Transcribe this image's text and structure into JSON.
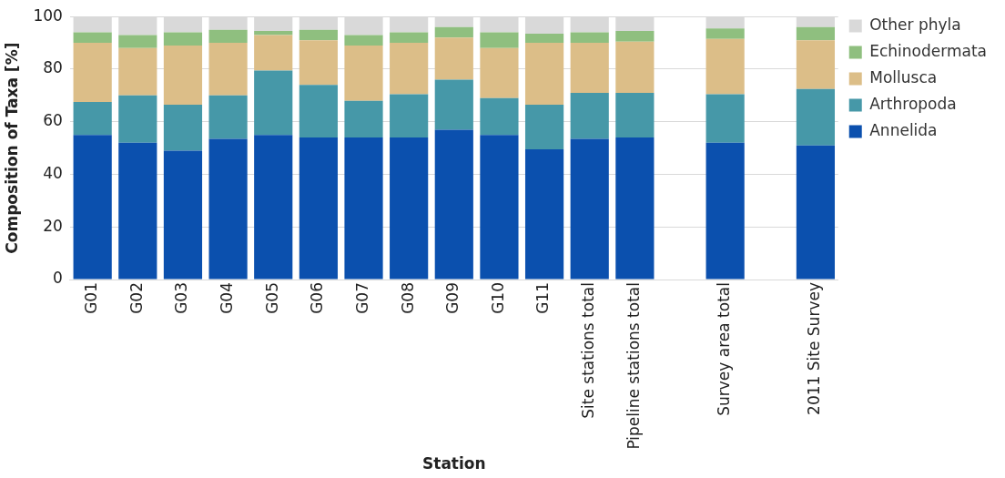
{
  "chart_data": {
    "type": "bar",
    "stacked": true,
    "xlabel": "Station",
    "ylabel": "Composition of Taxa [%]",
    "categories": [
      "G01",
      "G02",
      "G03",
      "G04",
      "G05",
      "G06",
      "G07",
      "G08",
      "G09",
      "G10",
      "G11",
      "Site stations total",
      "Pipeline stations total",
      null,
      "Survey area total",
      null,
      "2011 Site Survey"
    ],
    "series": [
      {
        "name": "Annelida",
        "color": "#0b50ae",
        "values": [
          55,
          52,
          49,
          53.5,
          55,
          54,
          54,
          54,
          57,
          55,
          49.5,
          53.5,
          54,
          null,
          52,
          null,
          51
        ]
      },
      {
        "name": "Arthropoda",
        "color": "#4698a8",
        "values": [
          12.5,
          18,
          17.5,
          16.5,
          24.5,
          20,
          14,
          16.5,
          19,
          14,
          17,
          17.5,
          17,
          null,
          18.5,
          null,
          21.5
        ]
      },
      {
        "name": "Mollusca",
        "color": "#dcbe88",
        "values": [
          22.5,
          18,
          22.5,
          20,
          13.5,
          17,
          21,
          19.5,
          16,
          19,
          23.5,
          19,
          19.5,
          null,
          21,
          null,
          18.5
        ]
      },
      {
        "name": "Echinodermata",
        "color": "#8fbf7f",
        "values": [
          4,
          5,
          5,
          5,
          1.5,
          4,
          4,
          4,
          4,
          6,
          3.5,
          4,
          4,
          null,
          4,
          null,
          5
        ]
      },
      {
        "name": "Other phyla",
        "color": "#d9d9d9",
        "values": [
          6,
          7,
          6,
          5,
          5.5,
          5,
          7,
          6,
          4,
          6,
          6.5,
          6,
          5.5,
          null,
          4.5,
          null,
          4
        ]
      }
    ],
    "ylim": [
      0,
      100
    ],
    "yticks": [
      0,
      20,
      40,
      60,
      80,
      100
    ],
    "grid": "y",
    "legend": "right"
  }
}
